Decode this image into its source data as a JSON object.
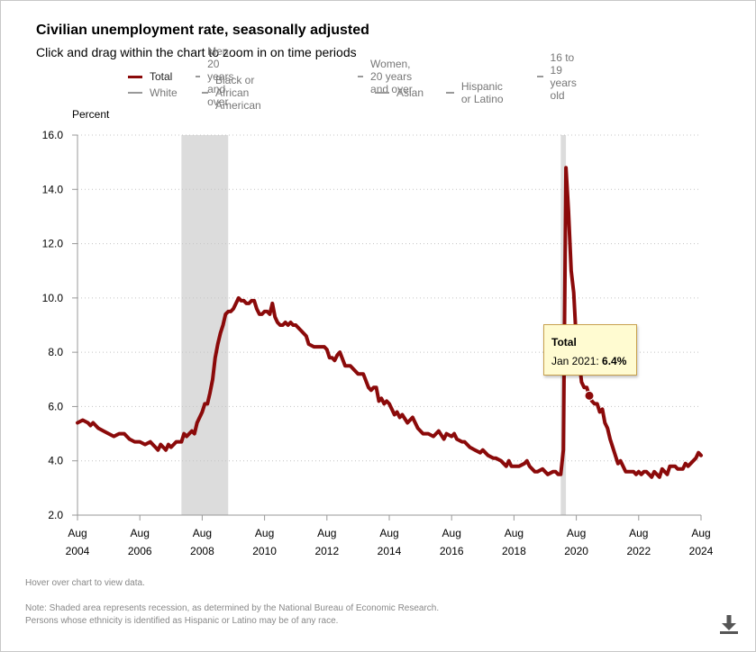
{
  "header": {
    "title": "Civilian unemployment rate, seasonally adjusted",
    "subtitle": "Click and drag within the chart to zoom in on time periods"
  },
  "legend": {
    "items": [
      {
        "label": "Total",
        "active": true
      },
      {
        "label": "Men, 20 years and over",
        "active": false
      },
      {
        "label": "Women, 20 years and over",
        "active": false
      },
      {
        "label": "16 to 19 years old",
        "active": false
      },
      {
        "label": "White",
        "active": false
      },
      {
        "label": "Black or African American",
        "active": false
      },
      {
        "label": "Asian",
        "active": false
      },
      {
        "label": "Hispanic or Latino",
        "active": false
      }
    ]
  },
  "tooltip": {
    "series": "Total",
    "date": "Jan 2021: ",
    "value": "6.4%"
  },
  "footer": {
    "hover_note": "Hover over chart to view data.",
    "note_line1": "Note: Shaded area represents recession, as determined by the National Bureau of Economic Research.",
    "note_line2": "Persons whose ethnicity is identified as Hispanic or Latino may be of any race."
  },
  "colors": {
    "series": "#8b0a0a",
    "recession": "#dcdcdc",
    "tooltip_bg": "#fffbd1",
    "tooltip_border": "#c8a14d"
  },
  "chart_data": {
    "type": "line",
    "title": "Civilian unemployment rate, seasonally adjusted",
    "ylabel": "Percent",
    "xlabel": "",
    "ylim": [
      2.0,
      16.0
    ],
    "yticks": [
      "2.0",
      "4.0",
      "6.0",
      "8.0",
      "10.0",
      "12.0",
      "14.0",
      "16.0"
    ],
    "xlim": [
      2004.583,
      2024.583
    ],
    "xticks": [
      {
        "t": 2004.583,
        "month": "Aug",
        "year": "2004"
      },
      {
        "t": 2006.583,
        "month": "Aug",
        "year": "2006"
      },
      {
        "t": 2008.583,
        "month": "Aug",
        "year": "2008"
      },
      {
        "t": 2010.583,
        "month": "Aug",
        "year": "2010"
      },
      {
        "t": 2012.583,
        "month": "Aug",
        "year": "2012"
      },
      {
        "t": 2014.583,
        "month": "Aug",
        "year": "2014"
      },
      {
        "t": 2016.583,
        "month": "Aug",
        "year": "2016"
      },
      {
        "t": 2018.583,
        "month": "Aug",
        "year": "2018"
      },
      {
        "t": 2020.583,
        "month": "Aug",
        "year": "2020"
      },
      {
        "t": 2022.583,
        "month": "Aug",
        "year": "2022"
      },
      {
        "t": 2024.583,
        "month": "Aug",
        "year": "2024"
      }
    ],
    "recessions": [
      [
        2007.917,
        2009.417
      ],
      [
        2020.083,
        2020.25
      ]
    ],
    "highlight": {
      "t": 2021.0,
      "value": 6.4
    },
    "series": [
      {
        "name": "Total",
        "points": [
          [
            2004.583,
            5.4
          ],
          [
            2004.75,
            5.5
          ],
          [
            2004.917,
            5.4
          ],
          [
            2005.0,
            5.3
          ],
          [
            2005.083,
            5.4
          ],
          [
            2005.25,
            5.2
          ],
          [
            2005.417,
            5.1
          ],
          [
            2005.583,
            5.0
          ],
          [
            2005.75,
            4.9
          ],
          [
            2005.917,
            5.0
          ],
          [
            2006.083,
            5.0
          ],
          [
            2006.25,
            4.8
          ],
          [
            2006.417,
            4.7
          ],
          [
            2006.583,
            4.7
          ],
          [
            2006.75,
            4.6
          ],
          [
            2006.917,
            4.7
          ],
          [
            2007.0,
            4.6
          ],
          [
            2007.083,
            4.5
          ],
          [
            2007.167,
            4.4
          ],
          [
            2007.25,
            4.6
          ],
          [
            2007.333,
            4.5
          ],
          [
            2007.417,
            4.4
          ],
          [
            2007.5,
            4.6
          ],
          [
            2007.583,
            4.5
          ],
          [
            2007.75,
            4.7
          ],
          [
            2007.917,
            4.7
          ],
          [
            2008.0,
            5.0
          ],
          [
            2008.083,
            4.9
          ],
          [
            2008.167,
            5.0
          ],
          [
            2008.25,
            5.1
          ],
          [
            2008.333,
            5.0
          ],
          [
            2008.417,
            5.4
          ],
          [
            2008.583,
            5.8
          ],
          [
            2008.667,
            6.1
          ],
          [
            2008.75,
            6.1
          ],
          [
            2008.833,
            6.5
          ],
          [
            2008.917,
            7.0
          ],
          [
            2009.0,
            7.8
          ],
          [
            2009.083,
            8.3
          ],
          [
            2009.167,
            8.7
          ],
          [
            2009.25,
            9.0
          ],
          [
            2009.333,
            9.4
          ],
          [
            2009.417,
            9.5
          ],
          [
            2009.5,
            9.5
          ],
          [
            2009.583,
            9.6
          ],
          [
            2009.667,
            9.8
          ],
          [
            2009.75,
            10.0
          ],
          [
            2009.833,
            9.9
          ],
          [
            2009.917,
            9.9
          ],
          [
            2010.0,
            9.8
          ],
          [
            2010.083,
            9.8
          ],
          [
            2010.167,
            9.9
          ],
          [
            2010.25,
            9.9
          ],
          [
            2010.333,
            9.6
          ],
          [
            2010.417,
            9.4
          ],
          [
            2010.5,
            9.4
          ],
          [
            2010.583,
            9.5
          ],
          [
            2010.667,
            9.5
          ],
          [
            2010.75,
            9.4
          ],
          [
            2010.833,
            9.8
          ],
          [
            2010.917,
            9.3
          ],
          [
            2011.0,
            9.1
          ],
          [
            2011.083,
            9.0
          ],
          [
            2011.167,
            9.0
          ],
          [
            2011.25,
            9.1
          ],
          [
            2011.333,
            9.0
          ],
          [
            2011.417,
            9.1
          ],
          [
            2011.5,
            9.0
          ],
          [
            2011.583,
            9.0
          ],
          [
            2011.75,
            8.8
          ],
          [
            2011.917,
            8.6
          ],
          [
            2012.0,
            8.3
          ],
          [
            2012.167,
            8.2
          ],
          [
            2012.333,
            8.2
          ],
          [
            2012.5,
            8.2
          ],
          [
            2012.583,
            8.1
          ],
          [
            2012.667,
            7.8
          ],
          [
            2012.75,
            7.8
          ],
          [
            2012.833,
            7.7
          ],
          [
            2012.917,
            7.9
          ],
          [
            2013.0,
            8.0
          ],
          [
            2013.167,
            7.5
          ],
          [
            2013.333,
            7.5
          ],
          [
            2013.5,
            7.3
          ],
          [
            2013.583,
            7.2
          ],
          [
            2013.75,
            7.2
          ],
          [
            2013.917,
            6.7
          ],
          [
            2014.0,
            6.6
          ],
          [
            2014.083,
            6.7
          ],
          [
            2014.167,
            6.7
          ],
          [
            2014.25,
            6.2
          ],
          [
            2014.333,
            6.3
          ],
          [
            2014.417,
            6.1
          ],
          [
            2014.5,
            6.2
          ],
          [
            2014.583,
            6.1
          ],
          [
            2014.75,
            5.7
          ],
          [
            2014.833,
            5.8
          ],
          [
            2014.917,
            5.6
          ],
          [
            2015.0,
            5.7
          ],
          [
            2015.167,
            5.4
          ],
          [
            2015.333,
            5.6
          ],
          [
            2015.5,
            5.2
          ],
          [
            2015.667,
            5.0
          ],
          [
            2015.833,
            5.0
          ],
          [
            2016.0,
            4.9
          ],
          [
            2016.167,
            5.1
          ],
          [
            2016.333,
            4.8
          ],
          [
            2016.417,
            5.0
          ],
          [
            2016.583,
            4.9
          ],
          [
            2016.667,
            5.0
          ],
          [
            2016.75,
            4.8
          ],
          [
            2016.917,
            4.7
          ],
          [
            2017.0,
            4.7
          ],
          [
            2017.167,
            4.5
          ],
          [
            2017.333,
            4.4
          ],
          [
            2017.5,
            4.3
          ],
          [
            2017.583,
            4.4
          ],
          [
            2017.75,
            4.2
          ],
          [
            2017.917,
            4.1
          ],
          [
            2018.0,
            4.1
          ],
          [
            2018.167,
            4.0
          ],
          [
            2018.333,
            3.8
          ],
          [
            2018.417,
            4.0
          ],
          [
            2018.5,
            3.8
          ],
          [
            2018.583,
            3.8
          ],
          [
            2018.75,
            3.8
          ],
          [
            2018.917,
            3.9
          ],
          [
            2019.0,
            4.0
          ],
          [
            2019.083,
            3.8
          ],
          [
            2019.25,
            3.6
          ],
          [
            2019.333,
            3.6
          ],
          [
            2019.5,
            3.7
          ],
          [
            2019.583,
            3.6
          ],
          [
            2019.667,
            3.5
          ],
          [
            2019.833,
            3.6
          ],
          [
            2019.917,
            3.6
          ],
          [
            2020.0,
            3.5
          ],
          [
            2020.083,
            3.5
          ],
          [
            2020.167,
            4.4
          ],
          [
            2020.25,
            14.8
          ],
          [
            2020.333,
            13.2
          ],
          [
            2020.417,
            11.0
          ],
          [
            2020.5,
            10.2
          ],
          [
            2020.583,
            8.4
          ],
          [
            2020.667,
            7.8
          ],
          [
            2020.75,
            6.9
          ],
          [
            2020.833,
            6.7
          ],
          [
            2020.917,
            6.7
          ],
          [
            2021.0,
            6.4
          ],
          [
            2021.083,
            6.2
          ],
          [
            2021.167,
            6.1
          ],
          [
            2021.25,
            6.1
          ],
          [
            2021.333,
            5.8
          ],
          [
            2021.417,
            5.9
          ],
          [
            2021.5,
            5.4
          ],
          [
            2021.583,
            5.2
          ],
          [
            2021.667,
            4.8
          ],
          [
            2021.75,
            4.5
          ],
          [
            2021.833,
            4.2
          ],
          [
            2021.917,
            3.9
          ],
          [
            2022.0,
            4.0
          ],
          [
            2022.083,
            3.8
          ],
          [
            2022.167,
            3.6
          ],
          [
            2022.25,
            3.6
          ],
          [
            2022.333,
            3.6
          ],
          [
            2022.417,
            3.6
          ],
          [
            2022.5,
            3.5
          ],
          [
            2022.583,
            3.6
          ],
          [
            2022.667,
            3.5
          ],
          [
            2022.75,
            3.6
          ],
          [
            2022.833,
            3.6
          ],
          [
            2022.917,
            3.5
          ],
          [
            2023.0,
            3.4
          ],
          [
            2023.083,
            3.6
          ],
          [
            2023.167,
            3.5
          ],
          [
            2023.25,
            3.4
          ],
          [
            2023.333,
            3.7
          ],
          [
            2023.417,
            3.6
          ],
          [
            2023.5,
            3.5
          ],
          [
            2023.583,
            3.8
          ],
          [
            2023.667,
            3.8
          ],
          [
            2023.75,
            3.8
          ],
          [
            2023.833,
            3.7
          ],
          [
            2023.917,
            3.7
          ],
          [
            2024.0,
            3.7
          ],
          [
            2024.083,
            3.9
          ],
          [
            2024.167,
            3.8
          ],
          [
            2024.25,
            3.9
          ],
          [
            2024.333,
            4.0
          ],
          [
            2024.417,
            4.1
          ],
          [
            2024.5,
            4.3
          ],
          [
            2024.583,
            4.2
          ]
        ]
      }
    ]
  }
}
